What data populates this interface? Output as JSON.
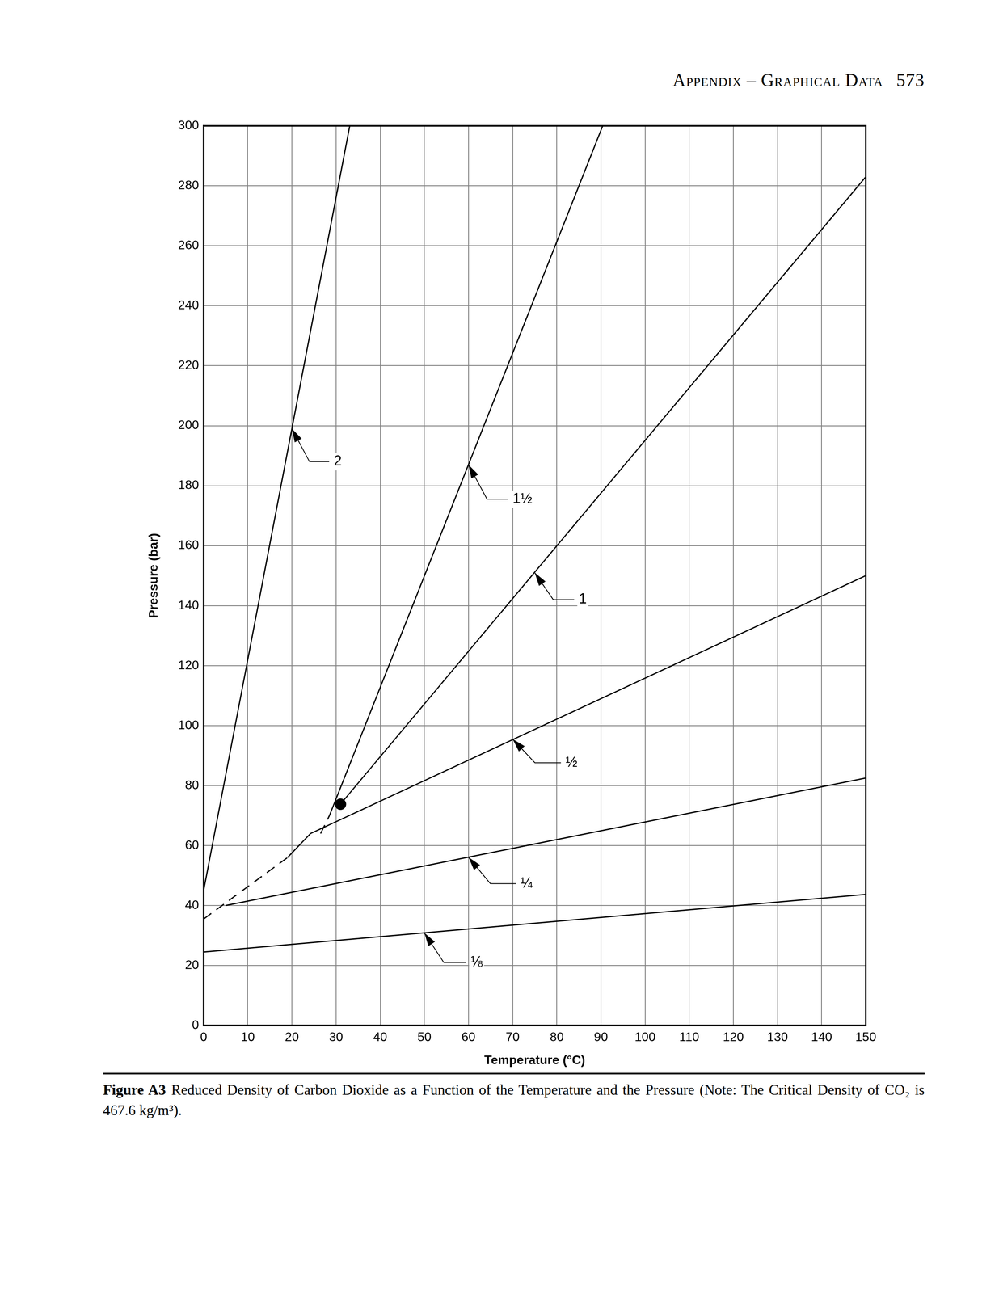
{
  "header": {
    "text": "Appendix – Graphical Data",
    "page": "573"
  },
  "chart_data": {
    "type": "line",
    "xlabel": "Temperature (°C)",
    "ylabel": "Pressure (bar)",
    "color": "#000000",
    "grid": true,
    "xlim": [
      0,
      150
    ],
    "xticks": [
      0,
      10,
      20,
      30,
      40,
      50,
      60,
      70,
      80,
      90,
      100,
      110,
      120,
      130,
      140,
      150
    ],
    "ylim": [
      0,
      300
    ],
    "yticks": [
      0,
      20,
      40,
      60,
      80,
      100,
      120,
      140,
      160,
      180,
      200,
      220,
      240,
      260,
      280,
      300
    ],
    "series": [
      {
        "name": "2",
        "x": [
          0,
          33.1
        ],
        "values": [
          45,
          300
        ],
        "line_style": "solid",
        "annotation": {
          "x": 20,
          "y": 199,
          "text_x": 29.5,
          "text_y": 188
        }
      },
      {
        "name": "1½",
        "x": [
          28.5,
          90.4
        ],
        "values": [
          70,
          300
        ],
        "line_style": "solid",
        "annotation": {
          "x": 60,
          "y": 187,
          "text_x": 70,
          "text_y": 175.5
        }
      },
      {
        "x": [
          26.5,
          28.5
        ],
        "values": [
          64,
          70
        ],
        "line_style": "dashed"
      },
      {
        "name": "1",
        "x": [
          31,
          150
        ],
        "values": [
          73.8,
          283
        ],
        "line_style": "solid",
        "annotation": {
          "x": 75,
          "y": 151,
          "text_x": 85,
          "text_y": 142
        }
      },
      {
        "name": "½",
        "x": [
          19,
          24.2,
          150
        ],
        "values": [
          56,
          64,
          150
        ],
        "line_style": "solid",
        "annotation": {
          "x": 70,
          "y": 95.5,
          "text_x": 82,
          "text_y": 87.6
        }
      },
      {
        "x": [
          0,
          19
        ],
        "values": [
          35.5,
          56
        ],
        "line_style": "dashed"
      },
      {
        "name": "¼",
        "x": [
          5,
          150
        ],
        "values": [
          40,
          82.5
        ],
        "line_style": "solid",
        "annotation": {
          "x": 60,
          "y": 56.1,
          "text_x": 71.8,
          "text_y": 47.3
        }
      },
      {
        "name": "⅛",
        "x": [
          0,
          150
        ],
        "values": [
          24.5,
          43.7
        ],
        "line_style": "solid",
        "annotation": {
          "x": 50,
          "y": 30.9,
          "text_x": 60.5,
          "text_y": 21
        }
      },
      {
        "type": "scatter",
        "marker": "circle",
        "x": [
          31
        ],
        "values": [
          73.8
        ]
      }
    ],
    "legend": false
  },
  "caption": {
    "label": "Figure A3",
    "text": "Reduced Density of Carbon Dioxide as a Function of the Temperature and the Pressure (Note: The Critical Density of CO₂ is 467.6 kg/m³)."
  }
}
